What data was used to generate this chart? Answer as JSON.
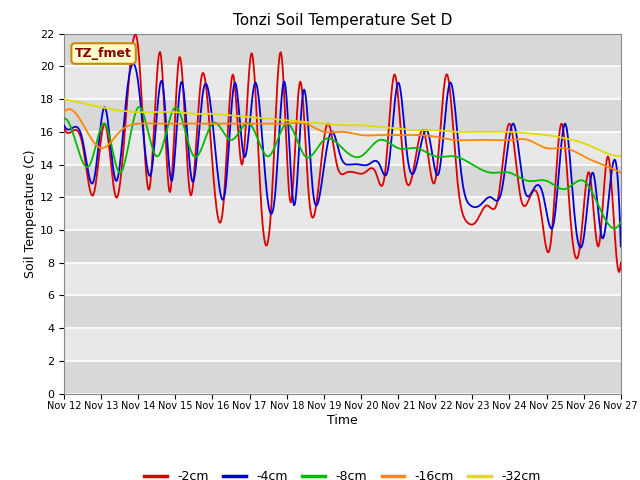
{
  "title": "Tonzi Soil Temperature Set D",
  "xlabel": "Time",
  "ylabel": "Soil Temperature (C)",
  "annotation": "TZ_fmet",
  "ylim": [
    0,
    22
  ],
  "yticks": [
    0,
    2,
    4,
    6,
    8,
    10,
    12,
    14,
    16,
    18,
    20,
    22
  ],
  "xtick_labels": [
    "Nov 12",
    "Nov 13",
    "Nov 14",
    "Nov 15",
    "Nov 16",
    "Nov 17",
    "Nov 18",
    "Nov 19",
    "Nov 20",
    "Nov 21",
    "Nov 22",
    "Nov 23",
    "Nov 24",
    "Nov 25",
    "Nov 26",
    "Nov 27"
  ],
  "colors": {
    "-2cm": "#dd0000",
    "-4cm": "#0000dd",
    "-8cm": "#00bb00",
    "-16cm": "#ff8800",
    "-32cm": "#dddd00"
  },
  "background_color": "#e8e8e8",
  "grid_color": "#ffffff",
  "annotation_bg": "#ffffcc",
  "annotation_border": "#cc8800",
  "figsize": [
    6.4,
    4.8
  ],
  "dpi": 100
}
